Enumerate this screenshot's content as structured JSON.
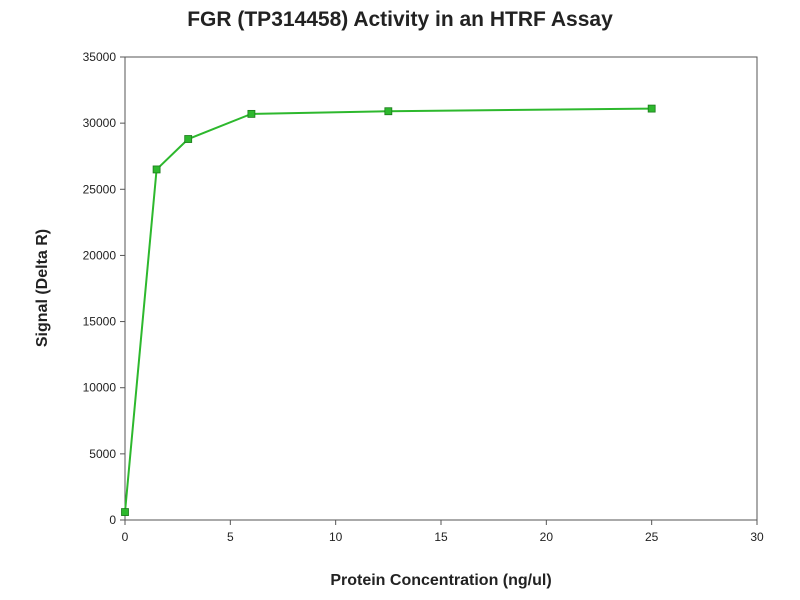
{
  "chart_data": {
    "type": "line",
    "title": "FGR (TP314458) Activity in an HTRF Assay",
    "xlabel": "Protein Concentration (ng/ul)",
    "ylabel": "Signal (Delta R)",
    "xlim": [
      0,
      30
    ],
    "ylim": [
      0,
      35000
    ],
    "xticks": [
      0,
      5,
      10,
      15,
      20,
      25,
      30
    ],
    "yticks": [
      0,
      5000,
      10000,
      15000,
      20000,
      25000,
      30000,
      35000
    ],
    "grid": false,
    "legend": "none",
    "series": [
      {
        "color": "#2db82d",
        "marker": "square",
        "x": [
          0,
          1.5,
          3,
          6,
          12.5,
          25
        ],
        "y": [
          600,
          26500,
          28800,
          30700,
          30900,
          31100
        ]
      }
    ]
  }
}
